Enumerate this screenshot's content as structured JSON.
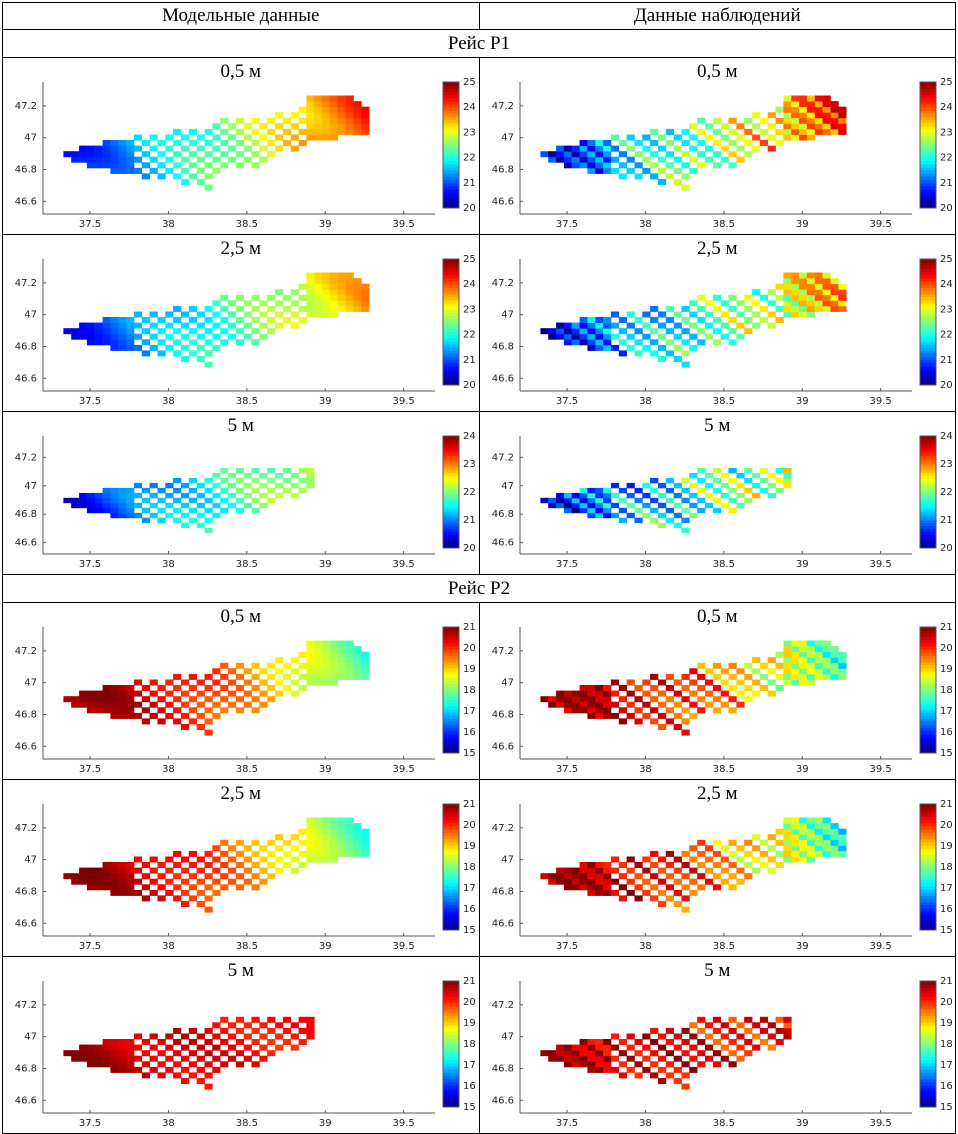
{
  "header": {
    "col_model": "Модельные данные",
    "col_obs": "Данные наблюдений"
  },
  "sections": [
    {
      "title": "Рейс Р1",
      "colorbar": {
        "min": 20,
        "max": 25,
        "ticks": [
          20,
          21,
          22,
          23,
          24,
          25
        ]
      }
    },
    {
      "title": "Рейс Р2",
      "colorbar": {
        "min": 15,
        "max": 21,
        "ticks": [
          15,
          16,
          17,
          18,
          19,
          20,
          21
        ]
      }
    }
  ],
  "depths": [
    "0,5 м",
    "2,5 м",
    "5 м"
  ],
  "colorbar_5m_r1": {
    "min": 20,
    "max": 24,
    "ticks": [
      20,
      21,
      22,
      23,
      24
    ]
  },
  "chart_data": {
    "type": "heatmap",
    "xlabel": "",
    "ylabel": "",
    "xlim": [
      37.2,
      39.7
    ],
    "ylim": [
      46.52,
      47.35
    ],
    "xticks": [
      "37.5",
      "38",
      "38.5",
      "39",
      "39.5"
    ],
    "yticks": [
      "46.6",
      "46.8",
      "47",
      "47.2"
    ],
    "panels": [
      {
        "trip": "Рейс Р1",
        "source": "Модельные данные",
        "depth": "0,5 м",
        "range": [
          20,
          25
        ]
      },
      {
        "trip": "Рейс Р1",
        "source": "Данные наблюдений",
        "depth": "0,5 м",
        "range": [
          20,
          25
        ]
      },
      {
        "trip": "Рейс Р1",
        "source": "Модельные данные",
        "depth": "2,5 м",
        "range": [
          20,
          25
        ]
      },
      {
        "trip": "Рейс Р1",
        "source": "Данные наблюдений",
        "depth": "2,5 м",
        "range": [
          20,
          25
        ]
      },
      {
        "trip": "Рейс Р1",
        "source": "Модельные данные",
        "depth": "5 м",
        "range": [
          20,
          24
        ]
      },
      {
        "trip": "Рейс Р1",
        "source": "Данные наблюдений",
        "depth": "5 м",
        "range": [
          20,
          24
        ]
      },
      {
        "trip": "Рейс Р2",
        "source": "Модельные данные",
        "depth": "0,5 м",
        "range": [
          15,
          21
        ]
      },
      {
        "trip": "Рейс Р2",
        "source": "Данные наблюдений",
        "depth": "0,5 м",
        "range": [
          15,
          21
        ]
      },
      {
        "trip": "Рейс Р2",
        "source": "Модельные данные",
        "depth": "2,5 м",
        "range": [
          15,
          21
        ]
      },
      {
        "trip": "Рейс Р2",
        "source": "Данные наблюдений",
        "depth": "2,5 м",
        "range": [
          15,
          21
        ]
      },
      {
        "trip": "Рейс Р2",
        "source": "Модельные данные",
        "depth": "5 м",
        "range": [
          15,
          21
        ]
      },
      {
        "trip": "Рейс Р2",
        "source": "Данные наблюдений",
        "depth": "5 м",
        "range": [
          15,
          21
        ]
      }
    ]
  }
}
